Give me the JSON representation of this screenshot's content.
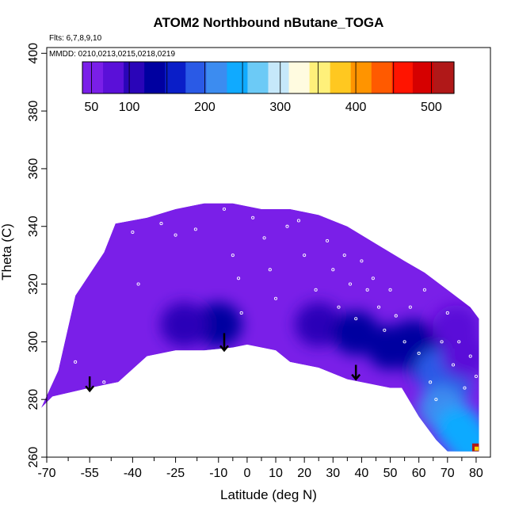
{
  "chart_data": {
    "type": "heatmap",
    "title": "ATOM2 Northbound nButane_TOGA",
    "flights_note": "Flts: 6,7,8,9,10",
    "dates_note": "MMDD: 0210,0213,0215,0218,0219",
    "xlabel": "Latitude (deg N)",
    "ylabel": "Theta (C)",
    "xlim": [
      -70,
      85
    ],
    "ylim": [
      260,
      402
    ],
    "x_ticks": [
      -70,
      -55,
      -40,
      -25,
      -10,
      0,
      10,
      20,
      30,
      40,
      50,
      60,
      70,
      80
    ],
    "y_ticks": [
      260,
      280,
      300,
      320,
      340,
      360,
      380,
      400
    ],
    "colorbar": {
      "range": [
        38,
        530
      ],
      "tick_values": [
        50,
        100,
        200,
        300,
        400,
        500
      ],
      "colors": [
        "#7a1fe8",
        "#5a10d8",
        "#2a05b8",
        "#0000a0",
        "#0a1ec8",
        "#2a5ae6",
        "#3c8cf0",
        "#10aaff",
        "#6ccaf6",
        "#c6e8fa",
        "#fffbe0",
        "#fff07a",
        "#ffc820",
        "#ff9400",
        "#ff5a00",
        "#ff1400",
        "#d60000",
        "#b01818"
      ],
      "separator_values": [
        50,
        100,
        150,
        200,
        250,
        300,
        350,
        400,
        450,
        500
      ]
    },
    "region_top": [
      [
        -72,
        277
      ],
      [
        -66,
        290
      ],
      [
        -60,
        316
      ],
      [
        -50,
        331
      ],
      [
        -46,
        341
      ],
      [
        -35,
        343
      ],
      [
        -25,
        346
      ],
      [
        -15,
        348
      ],
      [
        -5,
        348
      ],
      [
        5,
        346
      ],
      [
        15,
        346
      ],
      [
        25,
        344
      ],
      [
        35,
        340
      ],
      [
        45,
        334
      ],
      [
        55,
        328
      ],
      [
        62,
        324
      ],
      [
        70,
        318
      ],
      [
        78,
        312
      ],
      [
        81,
        308
      ],
      [
        81,
        262
      ]
    ],
    "region_bottom": [
      [
        -72,
        277
      ],
      [
        -68,
        281
      ],
      [
        -55,
        284
      ],
      [
        -45,
        286
      ],
      [
        -35,
        295
      ],
      [
        -25,
        297
      ],
      [
        -15,
        297
      ],
      [
        -5,
        298
      ],
      [
        0,
        299
      ],
      [
        10,
        297
      ],
      [
        15,
        293
      ],
      [
        25,
        291
      ],
      [
        35,
        287
      ],
      [
        45,
        285
      ],
      [
        50,
        284
      ],
      [
        54,
        284
      ],
      [
        60,
        274
      ],
      [
        66,
        266
      ],
      [
        70,
        262
      ],
      [
        81,
        262
      ]
    ],
    "field_blobs": [
      {
        "lat": -10,
        "theta": 306,
        "value": 140
      },
      {
        "lat": -22,
        "theta": 306,
        "value": 95
      },
      {
        "lat": 25,
        "theta": 306,
        "value": 105
      },
      {
        "lat": 38,
        "theta": 303,
        "value": 130
      },
      {
        "lat": 50,
        "theta": 298,
        "value": 130
      },
      {
        "lat": 58,
        "theta": 300,
        "value": 120
      },
      {
        "lat": 63,
        "theta": 294,
        "value": 120
      },
      {
        "lat": 67,
        "theta": 290,
        "value": 190
      },
      {
        "lat": 70,
        "theta": 285,
        "value": 185
      },
      {
        "lat": 68,
        "theta": 277,
        "value": 210
      },
      {
        "lat": 74,
        "theta": 270,
        "value": 235
      },
      {
        "lat": 78,
        "theta": 265,
        "value": 230
      },
      {
        "lat": 73,
        "theta": 305,
        "value": 70
      },
      {
        "lat": 76,
        "theta": 295,
        "value": 80
      }
    ],
    "hotspot": {
      "lat": 80,
      "theta": 262,
      "value": 520
    },
    "observations": [
      {
        "lat": -44,
        "theta": 342
      },
      {
        "lat": -40,
        "theta": 338
      },
      {
        "lat": -30,
        "theta": 341
      },
      {
        "lat": -25,
        "theta": 337
      },
      {
        "lat": -18,
        "theta": 339
      },
      {
        "lat": -8,
        "theta": 346
      },
      {
        "lat": -5,
        "theta": 330
      },
      {
        "lat": -3,
        "theta": 322
      },
      {
        "lat": -2,
        "theta": 310
      },
      {
        "lat": 2,
        "theta": 343
      },
      {
        "lat": 6,
        "theta": 336
      },
      {
        "lat": 8,
        "theta": 325
      },
      {
        "lat": 10,
        "theta": 315
      },
      {
        "lat": 14,
        "theta": 340
      },
      {
        "lat": 18,
        "theta": 342
      },
      {
        "lat": 20,
        "theta": 330
      },
      {
        "lat": 24,
        "theta": 318
      },
      {
        "lat": 28,
        "theta": 335
      },
      {
        "lat": 30,
        "theta": 325
      },
      {
        "lat": 32,
        "theta": 312
      },
      {
        "lat": 34,
        "theta": 330
      },
      {
        "lat": 36,
        "theta": 320
      },
      {
        "lat": 38,
        "theta": 308
      },
      {
        "lat": 40,
        "theta": 328
      },
      {
        "lat": 42,
        "theta": 318
      },
      {
        "lat": 44,
        "theta": 322
      },
      {
        "lat": 46,
        "theta": 312
      },
      {
        "lat": 48,
        "theta": 304
      },
      {
        "lat": 50,
        "theta": 318
      },
      {
        "lat": 52,
        "theta": 309
      },
      {
        "lat": 55,
        "theta": 300
      },
      {
        "lat": 57,
        "theta": 312
      },
      {
        "lat": 60,
        "theta": 296
      },
      {
        "lat": 62,
        "theta": 318
      },
      {
        "lat": 64,
        "theta": 286
      },
      {
        "lat": 66,
        "theta": 280
      },
      {
        "lat": 68,
        "theta": 300
      },
      {
        "lat": 70,
        "theta": 310
      },
      {
        "lat": 72,
        "theta": 292
      },
      {
        "lat": 74,
        "theta": 300
      },
      {
        "lat": 76,
        "theta": 284
      },
      {
        "lat": 78,
        "theta": 295
      },
      {
        "lat": 80,
        "theta": 288
      },
      {
        "lat": -50,
        "theta": 286
      },
      {
        "lat": -38,
        "theta": 320
      },
      {
        "lat": -60,
        "theta": 293
      }
    ],
    "arrows": [
      {
        "lat": -55,
        "theta_top": 288,
        "theta_tip": 283
      },
      {
        "lat": -8,
        "theta_top": 303,
        "theta_tip": 297
      },
      {
        "lat": 38,
        "theta_top": 292,
        "theta_tip": 287
      }
    ]
  }
}
